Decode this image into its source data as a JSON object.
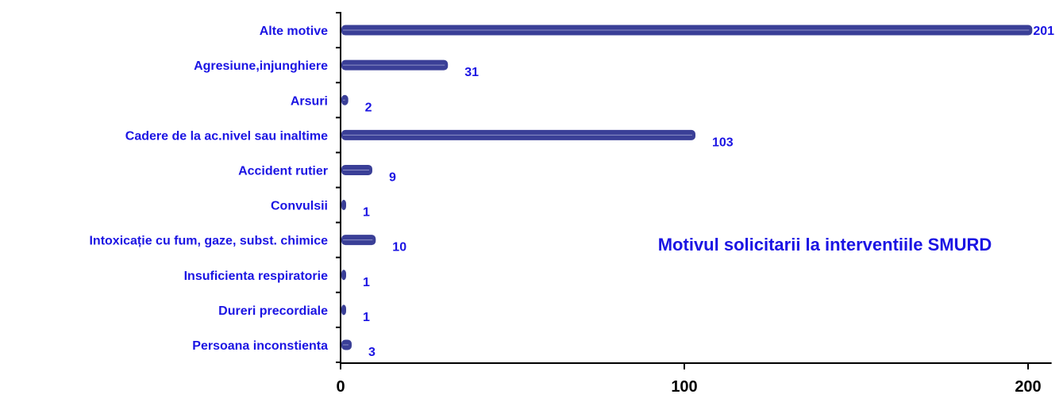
{
  "chart_data": {
    "type": "bar",
    "orientation": "horizontal",
    "title": "Motivul solicitarii la interventiile SMURD",
    "categories": [
      "Alte motive",
      "Agresiune,injunghiere",
      "Arsuri",
      "Cadere de la ac.nivel sau inaltime",
      "Accident rutier",
      "Convulsii",
      "Intoxicație cu fum, gaze, subst. chimice",
      "Insuficienta respiratorie",
      "Dureri precordiale",
      "Persoana inconstienta"
    ],
    "values": [
      201,
      31,
      2,
      103,
      9,
      1,
      10,
      1,
      1,
      3
    ],
    "value_labels": [
      "201",
      "31",
      "2",
      "103",
      "9",
      "1",
      "10",
      "1",
      "1",
      "3"
    ],
    "xlim": [
      0,
      205
    ],
    "xticks": [
      0,
      100,
      200
    ],
    "xtick_labels": [
      "0",
      "100",
      "200"
    ],
    "grid": false,
    "legend": "none",
    "colors": {
      "bar": "#3a3f97",
      "label_text": "#1b14e3",
      "axis": "#000000"
    }
  }
}
